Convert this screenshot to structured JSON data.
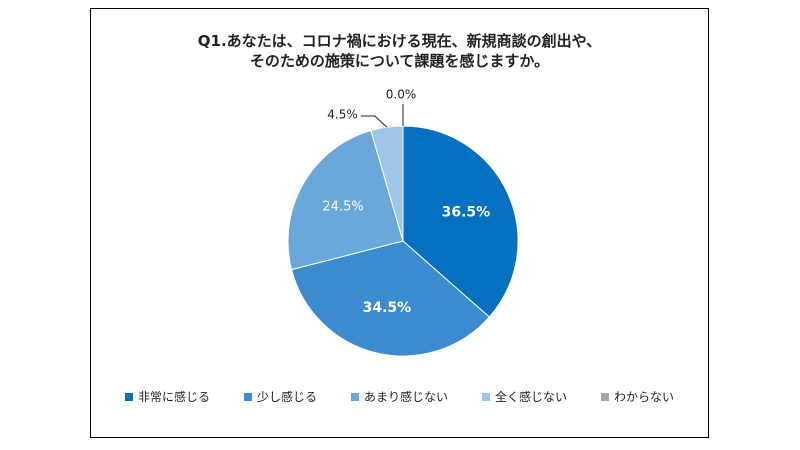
{
  "chart_data": {
    "type": "pie",
    "title_lines": [
      "Q1.あなたは、コロナ禍における現在、新規商談の創出や、",
      "そのための施策について課題を感じますか。"
    ],
    "categories": [
      "非常に感じる",
      "少し感じる",
      "あまり感じない",
      "全く感じない",
      "わからない"
    ],
    "values": [
      36.5,
      34.5,
      24.5,
      4.5,
      0.0
    ],
    "value_labels": [
      "36.5%",
      "34.5%",
      "24.5%",
      "4.5%",
      "0.0%"
    ],
    "colors": [
      "#0570c0",
      "#3a8bd0",
      "#6aa8dc",
      "#9ec6e8",
      "#a6a6a6"
    ],
    "label_colors": [
      "#ffffff",
      "#ffffff",
      "#ffffff",
      "#222222",
      "#222222"
    ],
    "start_angle_deg": 0,
    "direction": "clockwise",
    "legend_position": "bottom"
  }
}
